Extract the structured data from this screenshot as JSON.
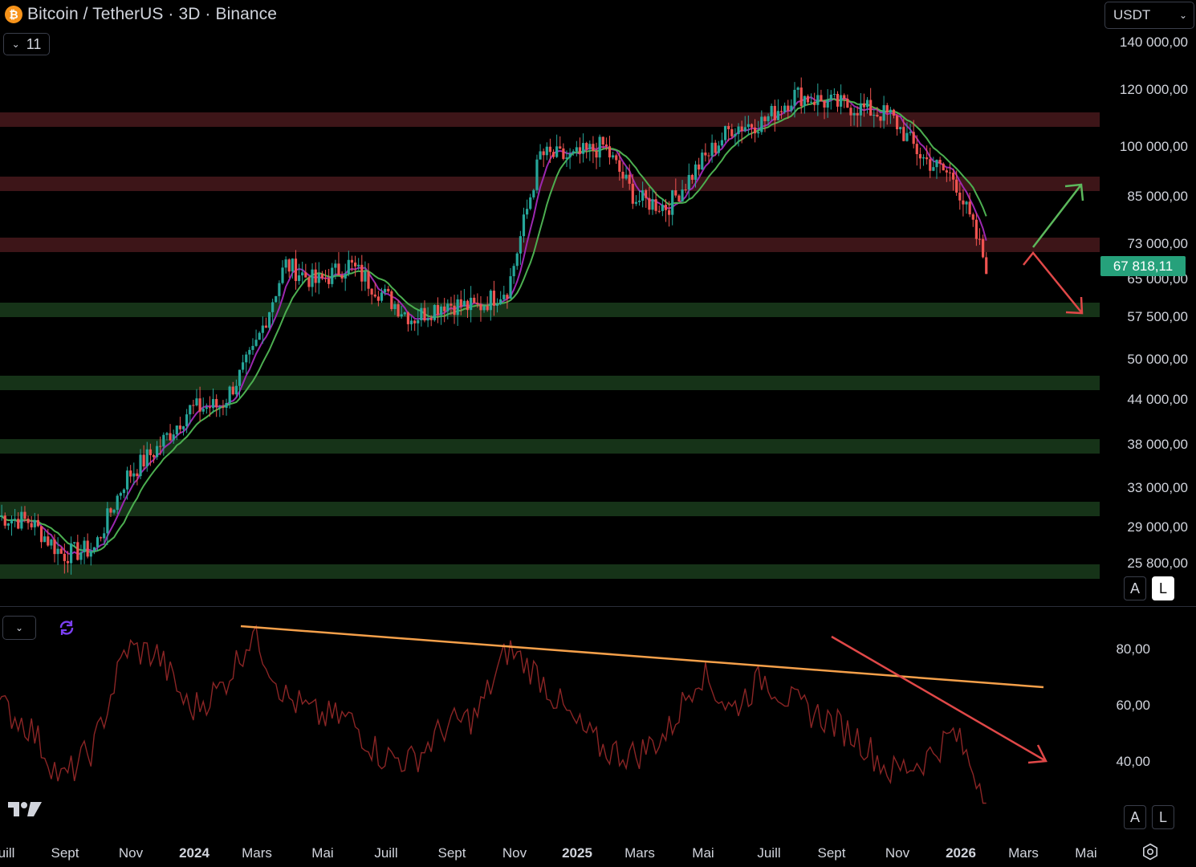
{
  "header": {
    "symbol_title": "Bitcoin / TetherUS · 3D · Binance",
    "coin_icon": "bitcoin-icon",
    "indicator_count": "11",
    "currency_select": "USDT"
  },
  "price_axis": {
    "labels": [
      "140 000,00",
      "120 000,00",
      "100 000,00",
      "85 000,00",
      "73 000,00",
      "65 000,00",
      "57 500,00",
      "50 000,00",
      "44 000,00",
      "38 000,00",
      "33 000,00",
      "29 000,00",
      "25 800,00"
    ],
    "current_price": "67 818,11",
    "current_price_color": "#26a17b",
    "auto_button": "A",
    "log_button": "L"
  },
  "rsi_axis": {
    "labels": [
      "80,00",
      "60,00",
      "40,00"
    ],
    "auto_button": "A",
    "log_button": "L"
  },
  "time_axis": {
    "labels": [
      "uill",
      "Sept",
      "Nov",
      "2024",
      "Mars",
      "Mai",
      "Juill",
      "Sept",
      "Nov",
      "2025",
      "Mars",
      "Mai",
      "Juill",
      "Sept",
      "Nov",
      "2026",
      "Mars",
      "Mai"
    ]
  },
  "zones": {
    "resistance_color": "#3d1518",
    "support_color": "#163318",
    "resistance_levels": [
      110000,
      88000,
      72000
    ],
    "support_levels": [
      59000,
      46000,
      37500,
      30500,
      25000
    ]
  },
  "colors": {
    "bull_candle": "#26a69a",
    "bear_candle": "#ef5350",
    "fast_ma": "#9c27b0",
    "slow_ma": "#4caf50",
    "rsi_line": "#8b2525",
    "rsi_trendline": "#f5a04a",
    "rsi_down_arrow": "#e04848",
    "up_arrow": "#5cb85c",
    "down_arrow": "#e04848"
  },
  "chart_data": {
    "type": "line",
    "price_series": {
      "name": "",
      "x": [
        "2023-07",
        "2023-08",
        "2023-09",
        "2023-10",
        "2023-11",
        "2023-12",
        "2024-01",
        "2024-02",
        "2024-03",
        "2024-04",
        "2024-05",
        "2024-06",
        "2024-07",
        "2024-08",
        "2024-09",
        "2024-10",
        "2024-11",
        "2024-12",
        "2025-01",
        "2025-02",
        "2025-03",
        "2025-04",
        "2025-05",
        "2025-06",
        "2025-07",
        "2025-08",
        "2025-09",
        "2025-10",
        "2025-11",
        "2025-12",
        "2026-01",
        "2026-02"
      ],
      "close": [
        30000,
        29500,
        26500,
        27000,
        34000,
        37500,
        42500,
        43000,
        51000,
        68000,
        64000,
        68000,
        62000,
        57000,
        60000,
        59000,
        63000,
        97000,
        96000,
        100000,
        84000,
        82000,
        94000,
        106000,
        108000,
        118000,
        115000,
        113000,
        110000,
        96000,
        90000,
        67818
      ]
    },
    "rsi_series": {
      "name": "",
      "x": [
        "2023-07",
        "2023-08",
        "2023-09",
        "2023-10",
        "2023-11",
        "2023-12",
        "2024-01",
        "2024-02",
        "2024-03",
        "2024-04",
        "2024-05",
        "2024-06",
        "2024-07",
        "2024-08",
        "2024-09",
        "2024-10",
        "2024-11",
        "2024-12",
        "2025-01",
        "2025-02",
        "2025-03",
        "2025-04",
        "2025-05",
        "2025-06",
        "2025-07",
        "2025-08",
        "2025-09",
        "2025-10",
        "2025-11",
        "2025-12",
        "2026-01",
        "2026-02"
      ],
      "values": [
        60,
        52,
        33,
        45,
        80,
        78,
        58,
        66,
        86,
        63,
        56,
        55,
        42,
        40,
        52,
        56,
        80,
        70,
        54,
        44,
        42,
        50,
        72,
        58,
        70,
        60,
        55,
        48,
        36,
        40,
        50,
        28
      ]
    },
    "price_ylim": [
      24000,
      150000
    ],
    "rsi_ylim": [
      22,
      92
    ],
    "price_scale": "log",
    "grid": "off"
  }
}
